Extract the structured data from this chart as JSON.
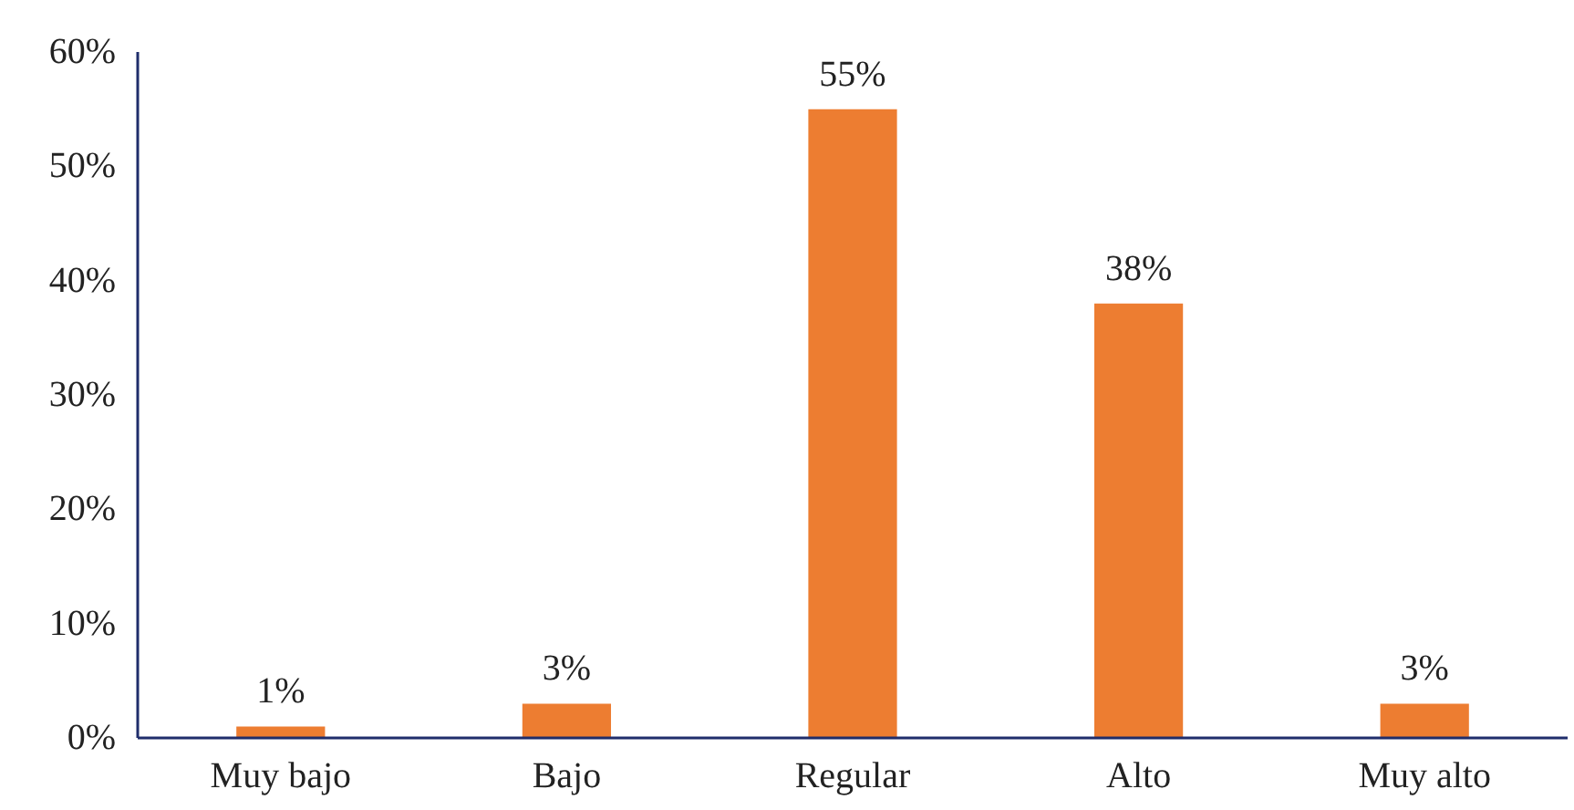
{
  "chart_data": {
    "type": "bar",
    "categories": [
      "Muy bajo",
      "Bajo",
      "Regular",
      "Alto",
      "Muy alto"
    ],
    "values": [
      1,
      3,
      55,
      38,
      3
    ],
    "value_labels": [
      "1%",
      "3%",
      "55%",
      "38%",
      "3%"
    ],
    "color": "#ed7d31",
    "ylim": [
      0,
      60
    ],
    "yticks": [
      {
        "value": 0,
        "label": "0%"
      },
      {
        "value": 10,
        "label": "10%"
      },
      {
        "value": 20,
        "label": "20%"
      },
      {
        "value": 30,
        "label": "30%"
      },
      {
        "value": 40,
        "label": "40%"
      },
      {
        "value": 50,
        "label": "50%"
      },
      {
        "value": 60,
        "label": "60%"
      }
    ],
    "grid": false
  }
}
